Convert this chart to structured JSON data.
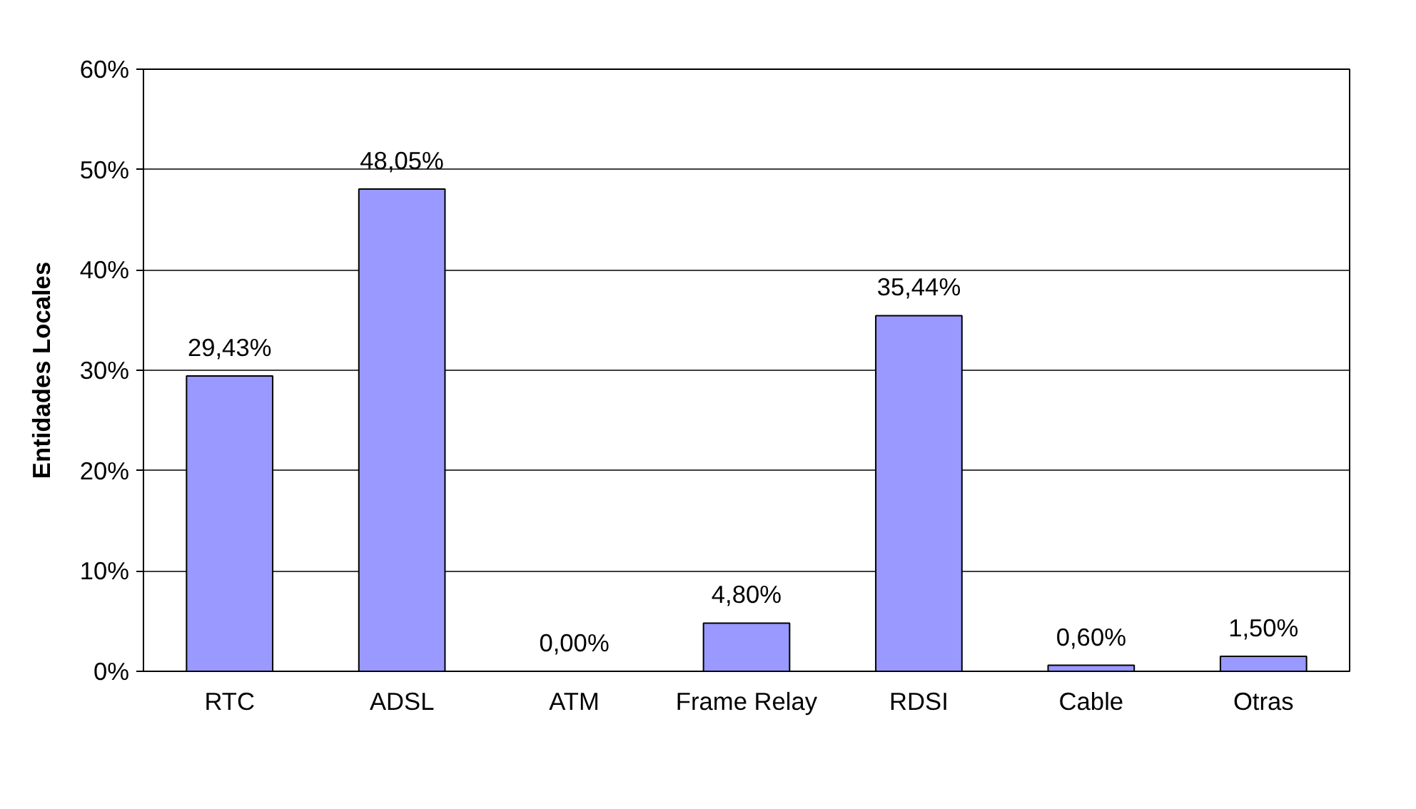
{
  "chart_data": {
    "type": "bar",
    "ylabel": "Entidades Locales",
    "categories": [
      "RTC",
      "ADSL",
      "ATM",
      "Frame Relay",
      "RDSI",
      "Cable",
      "Otras"
    ],
    "values": [
      29.43,
      48.05,
      0.0,
      4.8,
      35.44,
      0.6,
      1.5
    ],
    "value_labels": [
      "29,43%",
      "48,05%",
      "0,00%",
      "4,80%",
      "35,44%",
      "0,60%",
      "1,50%"
    ],
    "color": "#9999ff",
    "ylim": [
      0,
      60
    ],
    "yticks": [
      {
        "value": 0,
        "label": "0%"
      },
      {
        "value": 10,
        "label": "10%"
      },
      {
        "value": 20,
        "label": "20%"
      },
      {
        "value": 30,
        "label": "30%"
      },
      {
        "value": 40,
        "label": "40%"
      },
      {
        "value": 50,
        "label": "50%"
      },
      {
        "value": 60,
        "label": "60%"
      }
    ],
    "grid": "y"
  }
}
